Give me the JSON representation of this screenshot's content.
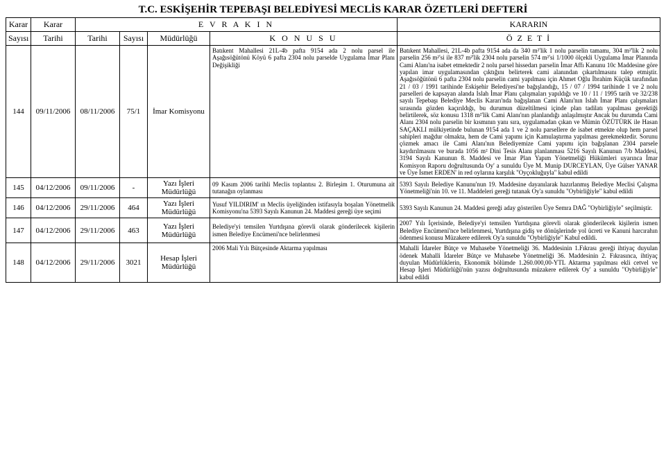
{
  "title": "T.C. ESKİŞEHİR TEPEBAŞI BELEDİYESİ MECLİS KARAR ÖZETLERİ DEFTERİ",
  "header": {
    "col1_l1": "Karar",
    "col1_l2": "Sayısı",
    "col2_l1": "Karar",
    "col2_l2": "Tarihi",
    "evrakin": "E V R A K I N",
    "tarihi": "Tarihi",
    "sayisi": "Sayısı",
    "mudurlugu": "Müdürlüğü",
    "konusu": "K O N U S U",
    "kararin": "KARARIN",
    "ozeti": "Ö Z E T İ"
  },
  "rows": [
    {
      "no": "144",
      "tarih": "09/11/2006",
      "etarih": "08/11/2006",
      "esayi": "75/1",
      "mudurluk": "İmar Komisyonu",
      "konu": "Batıkent Mahallesi 21L-4b pafta 9154 ada 2 nolu parsel ile Aşağısöğütönü Köyü 6 pafta 2304 nolu parselde Uygulama İmar Planı Değişikliği",
      "ozet": "Batıkent Mahallesi, 21L-4b pafta 9154 ada da 340 m²'lik 1 nolu parselin tamamı, 304 m²'lik 2 nolu parselin 256 m²'si ile 837 m²'lik 2304 nolu parselin 574 m²'si 1/1000 ölçekli Uygulama İmar Planında Cami Alanı'na isabet etmektedir 2 nolu parsel hissedarı parselin İmar Affı Kanunu 10c Maddesine göre yapılan imar uygulamasından çıktığını belirterek cami alanından çıkartılmasını talep etmiştir. Aşağısöğütönü 6 pafta 2304 nolu parselin cami yapılması için Ahmet Oğlu İbrahim Küçük tarafından 21 / 03 / 1991 tarihinde Eskişehir Belediyesi'ne bağışlandığı, 15 / 07 / 1994 tarihinde 1 ve 2 nolu parselleri de kapsayan alanda Islah İmar Planı çalışmaları yapıldığı ve 10 / 11 / 1995 tarih ve 32/238 sayılı Tepebaşı Belediye Meclis Kararı'nda bağışlanan Cami Alanı'nın Islah İmar Planı çalışmaları sırasında gözden kaçırıldığı, bu durumun düzeltilmesi içinde plan tadilatı yapılması gerektiği belirtilerek, söz konusu 1318 m²'lik Cami Alanı'nın planlandığı anlaşılmıştır Ancak bu durumda Cami Alanı 2304 nolu parselin bir kısmının yanı sıra, uygulamadan çıkan ve Mümin ÖZÜTÜRK ile Hasan SAÇAKLI mülkiyetinde bulunan 9154 ada 1 ve 2 nolu parsellere de isabet etmekte olup hem parsel sahipleri mağdur olmakta, hem de Cami yapımı için Kamulaştırma yapılması gerekmektedir. Sorunu çözmek amacı ile Cami Alanı'nın Belediyemize Cami yapımı için bağışlanan 2304 parsele kaydırılmasını ve burada 1056 m² Dini Tesis Alanı planlanması 5216 Sayılı Kanunun 7/b Maddesi, 3194 Sayılı Kanunun 8. Maddesi ve İmar Plan Yapım Yönetmeliği Hükümleri uyarınca İmar Komisyon Raporu doğrultusunda Oy' a sunuldu Üye M. Munip DURCEYLAN, Üye Gülser YANAR ve Üye İsmet ERDEN' in red oylarına karşılık \"Oyçokluğuyla\" kabul edildi"
    },
    {
      "no": "145",
      "tarih": "04/12/2006",
      "etarih": "09/11/2006",
      "esayi": "-",
      "mudurluk": "Yazı İşleri Müdürlüğü",
      "konu": "09 Kasım 2006 tarihli Meclis toplantısı 2. Birleşim 1. Oturumuna ait tutanağın oylanması",
      "ozet": "5393 Sayılı Belediye Kanunu'nun 19. Maddesine dayanılarak hazırlanmış Belediye Meclisi Çalışma Yönetmeliği'nin 10. ve 11. Maddeleri gereği tutanak Oy'a sunuldu \"Oybirliğiyle\" kabul edildi"
    },
    {
      "no": "146",
      "tarih": "04/12/2006",
      "etarih": "29/11/2006",
      "esayi": "464",
      "mudurluk": "Yazı İşleri Müdürlüğü",
      "konu": "Yusuf YILDIRIM' ın Meclis üyeliğinden istifasıyla boşalan Yönetmelik Komisyonu'na 5393 Sayılı Kanunun 24. Maddesi gereği üye seçimi",
      "ozet": "5393 Sayılı Kanunun 24. Maddesi gereği aday gösterilen Üye Semra DAĞ \"Oybirliğiyle\" seçilmiştir."
    },
    {
      "no": "147",
      "tarih": "04/12/2006",
      "etarih": "29/11/2006",
      "esayi": "463",
      "mudurluk": "Yazı İşleri Müdürlüğü",
      "konu": "Belediye'yi temsilen Yurtdışına görevli olarak gönderilecek kişilerin ismen Belediye Encümeni'nce belirlenmesi",
      "ozet": "2007 Yılı İçerisinde, Belediye'yi temsilen Yurtdışına görevli olarak gönderilecek kişilerin ismen Belediye Encümeni'nce belirlenmesi, Yurtdışına gidiş ve dönüşlerinde yol ücreti ve Kanuni harcırahın ödenmesi konusu Müzakere edilerek Oy'a sunuldu \"Oybirliğiyle\" Kabul edildi."
    },
    {
      "no": "148",
      "tarih": "04/12/2006",
      "etarih": "29/11/2006",
      "esayi": "3021",
      "mudurluk": "Hesap İşleri Müdürlüğü",
      "konu": "2006 Mali Yılı Bütçesinde Aktarma yapılması",
      "ozet": "Mahalli İdareler Bütçe ve Muhasebe Yönetmeliği 36. Maddesinin 1.Fıkrası gereği ihtiyaç duyulan ödenek Mahalli İdareler Bütçe ve Muhasebe Yönetmeliği 36. Maddesinin 2. Fıkrasınca, ihtiyaç duyulan Müdürlüklerin, Ekonomik bölümde 1.260.000,00-YTL Aktarma yapılması ekli cetvel ve Hesap İşleri Müdürlüğü'nün yazısı doğrultusunda müzakere edilerek Oy' a sunuldu \"Oybirliğiyle\" kabul edildi"
    }
  ]
}
